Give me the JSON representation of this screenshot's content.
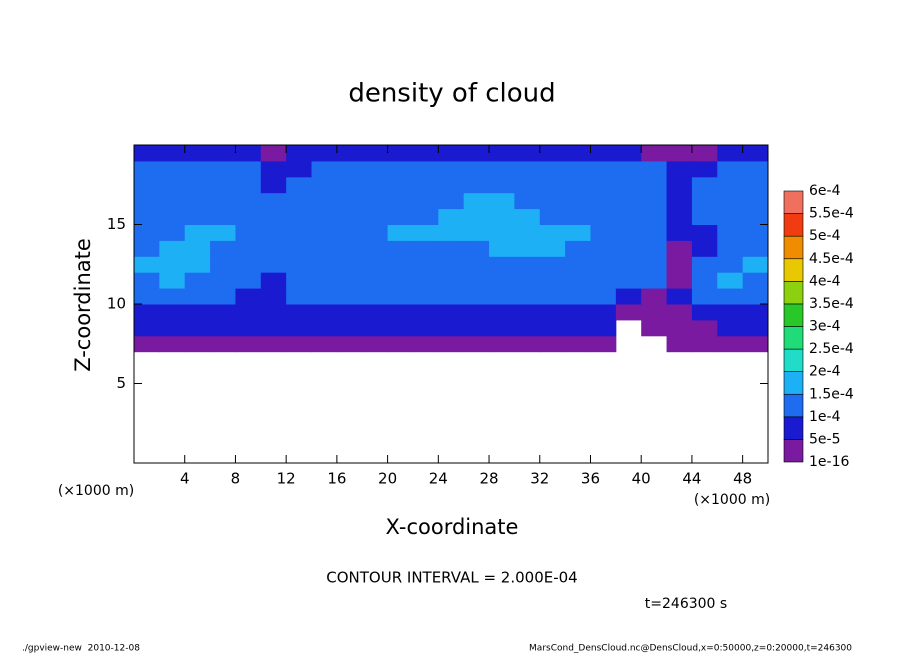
{
  "chart_data": {
    "type": "heatmap",
    "title": "density of cloud",
    "x_label": "X-coordinate",
    "y_label": "Z-coordinate",
    "x_unit_left": "(×1000 m)",
    "x_unit_right": "(×1000 m)",
    "xlim": [
      0,
      50
    ],
    "ylim": [
      0,
      20
    ],
    "xticks": [
      4,
      8,
      12,
      16,
      20,
      24,
      28,
      32,
      36,
      40,
      44,
      48
    ],
    "yticks": [
      5,
      10,
      15
    ],
    "x": [
      1,
      3,
      5,
      7,
      9,
      11,
      13,
      15,
      17,
      19,
      21,
      23,
      25,
      27,
      29,
      31,
      33,
      35,
      37,
      39,
      41,
      43,
      45,
      47,
      49
    ],
    "y": [
      7.5,
      8.5,
      9.5,
      10.5,
      11.5,
      12.5,
      13.5,
      14.5,
      15.5,
      16.5,
      17.5,
      18.5,
      19.5
    ],
    "values": [
      [
        3e-05,
        3e-05,
        3e-05,
        3e-05,
        3e-05,
        3e-05,
        3e-05,
        3e-05,
        3e-05,
        3e-05,
        3e-05,
        3e-05,
        3e-05,
        3e-05,
        3e-05,
        3e-05,
        3e-05,
        3e-05,
        3e-05,
        null,
        null,
        3e-05,
        3e-05,
        3e-05,
        3e-05
      ],
      [
        7e-05,
        7e-05,
        7e-05,
        7e-05,
        7e-05,
        7e-05,
        7e-05,
        7e-05,
        7e-05,
        7e-05,
        7e-05,
        7e-05,
        7e-05,
        7e-05,
        7e-05,
        7e-05,
        7e-05,
        7e-05,
        7e-05,
        null,
        3e-05,
        3e-05,
        3e-05,
        7e-05,
        7e-05
      ],
      [
        7e-05,
        7e-05,
        7e-05,
        7e-05,
        7e-05,
        7e-05,
        7e-05,
        7e-05,
        7e-05,
        7e-05,
        7e-05,
        7e-05,
        7e-05,
        7e-05,
        7e-05,
        7e-05,
        7e-05,
        7e-05,
        7e-05,
        3e-05,
        3e-05,
        3e-05,
        7e-05,
        7e-05,
        7e-05
      ],
      [
        0.00012,
        0.00012,
        0.00012,
        0.00012,
        7e-05,
        7e-05,
        0.00012,
        0.00012,
        0.00012,
        0.00012,
        0.00012,
        0.00012,
        0.00012,
        0.00012,
        0.00012,
        0.00012,
        0.00012,
        0.00012,
        0.00012,
        7e-05,
        3e-05,
        7e-05,
        0.00012,
        0.00012,
        0.00012
      ],
      [
        0.00012,
        0.00017,
        0.00012,
        0.00012,
        0.00012,
        7e-05,
        0.00012,
        0.00012,
        0.00012,
        0.00012,
        0.00012,
        0.00012,
        0.00012,
        0.00012,
        0.00012,
        0.00012,
        0.00012,
        0.00012,
        0.00012,
        0.00012,
        0.00012,
        3e-05,
        0.00012,
        0.00017,
        0.00012
      ],
      [
        0.00017,
        0.00017,
        0.00017,
        0.00012,
        0.00012,
        0.00012,
        0.00012,
        0.00012,
        0.00012,
        0.00012,
        0.00012,
        0.00012,
        0.00012,
        0.00012,
        0.00012,
        0.00012,
        0.00012,
        0.00012,
        0.00012,
        0.00012,
        0.00012,
        3e-05,
        0.00012,
        0.00012,
        0.00017
      ],
      [
        0.00012,
        0.00017,
        0.00017,
        0.00012,
        0.00012,
        0.00012,
        0.00012,
        0.00012,
        0.00012,
        0.00012,
        0.00012,
        0.00012,
        0.00012,
        0.00012,
        0.00017,
        0.00017,
        0.00017,
        0.00012,
        0.00012,
        0.00012,
        0.00012,
        3e-05,
        7e-05,
        0.00012,
        0.00012
      ],
      [
        0.00012,
        0.00012,
        0.00017,
        0.00017,
        0.00012,
        0.00012,
        0.00012,
        0.00012,
        0.00012,
        0.00012,
        0.00017,
        0.00017,
        0.00017,
        0.00017,
        0.00017,
        0.00017,
        0.00017,
        0.00017,
        0.00012,
        0.00012,
        0.00012,
        7e-05,
        7e-05,
        0.00012,
        0.00012
      ],
      [
        0.00012,
        0.00012,
        0.00012,
        0.00012,
        0.00012,
        0.00012,
        0.00012,
        0.00012,
        0.00012,
        0.00012,
        0.00012,
        0.00012,
        0.00017,
        0.00017,
        0.00017,
        0.00017,
        0.00012,
        0.00012,
        0.00012,
        0.00012,
        0.00012,
        7e-05,
        0.00012,
        0.00012,
        0.00012
      ],
      [
        0.00012,
        0.00012,
        0.00012,
        0.00012,
        0.00012,
        0.00012,
        0.00012,
        0.00012,
        0.00012,
        0.00012,
        0.00012,
        0.00012,
        0.00012,
        0.00017,
        0.00017,
        0.00012,
        0.00012,
        0.00012,
        0.00012,
        0.00012,
        0.00012,
        7e-05,
        0.00012,
        0.00012,
        0.00012
      ],
      [
        0.00012,
        0.00012,
        0.00012,
        0.00012,
        0.00012,
        7e-05,
        0.00012,
        0.00012,
        0.00012,
        0.00012,
        0.00012,
        0.00012,
        0.00012,
        0.00012,
        0.00012,
        0.00012,
        0.00012,
        0.00012,
        0.00012,
        0.00012,
        0.00012,
        7e-05,
        0.00012,
        0.00012,
        0.00012
      ],
      [
        0.00012,
        0.00012,
        0.00012,
        0.00012,
        0.00012,
        7e-05,
        7e-05,
        0.00012,
        0.00012,
        0.00012,
        0.00012,
        0.00012,
        0.00012,
        0.00012,
        0.00012,
        0.00012,
        0.00012,
        0.00012,
        0.00012,
        0.00012,
        0.00012,
        7e-05,
        7e-05,
        0.00012,
        0.00012
      ],
      [
        7e-05,
        7e-05,
        7e-05,
        7e-05,
        7e-05,
        3e-05,
        7e-05,
        7e-05,
        7e-05,
        7e-05,
        7e-05,
        7e-05,
        7e-05,
        7e-05,
        7e-05,
        7e-05,
        7e-05,
        7e-05,
        7e-05,
        7e-05,
        3e-05,
        3e-05,
        3e-05,
        7e-05,
        7e-05
      ]
    ],
    "levels": [
      {
        "value": 1e-16,
        "label": "1e-16"
      },
      {
        "value": 5e-05,
        "label": "5e-5"
      },
      {
        "value": 0.0001,
        "label": "1e-4"
      },
      {
        "value": 0.00015,
        "label": "1.5e-4"
      },
      {
        "value": 0.0002,
        "label": "2e-4"
      },
      {
        "value": 0.00025,
        "label": "2.5e-4"
      },
      {
        "value": 0.0003,
        "label": "3e-4"
      },
      {
        "value": 0.00035,
        "label": "3.5e-4"
      },
      {
        "value": 0.0004,
        "label": "4e-4"
      },
      {
        "value": 0.00045,
        "label": "4.5e-4"
      },
      {
        "value": 0.0005,
        "label": "5e-4"
      },
      {
        "value": 0.00055,
        "label": "5.5e-4"
      },
      {
        "value": 0.0006,
        "label": "6e-4"
      }
    ],
    "colors": [
      "#7a1aa0",
      "#1a1ad0",
      "#1e6cf0",
      "#1eb0f4",
      "#20dcc8",
      "#20dc78",
      "#28c828",
      "#8cd010",
      "#e8c800",
      "#f08c00",
      "#f03c10",
      "#f07060"
    ],
    "annotation": "CONTOUR INTERVAL = 2.000E-04",
    "time_label": "t=246300 s",
    "footer_left": "./gpview-new  2010-12-08",
    "footer_right": "MarsCond_DensCloud.nc@DensCloud,x=0:50000,z=0:20000,t=246300"
  }
}
